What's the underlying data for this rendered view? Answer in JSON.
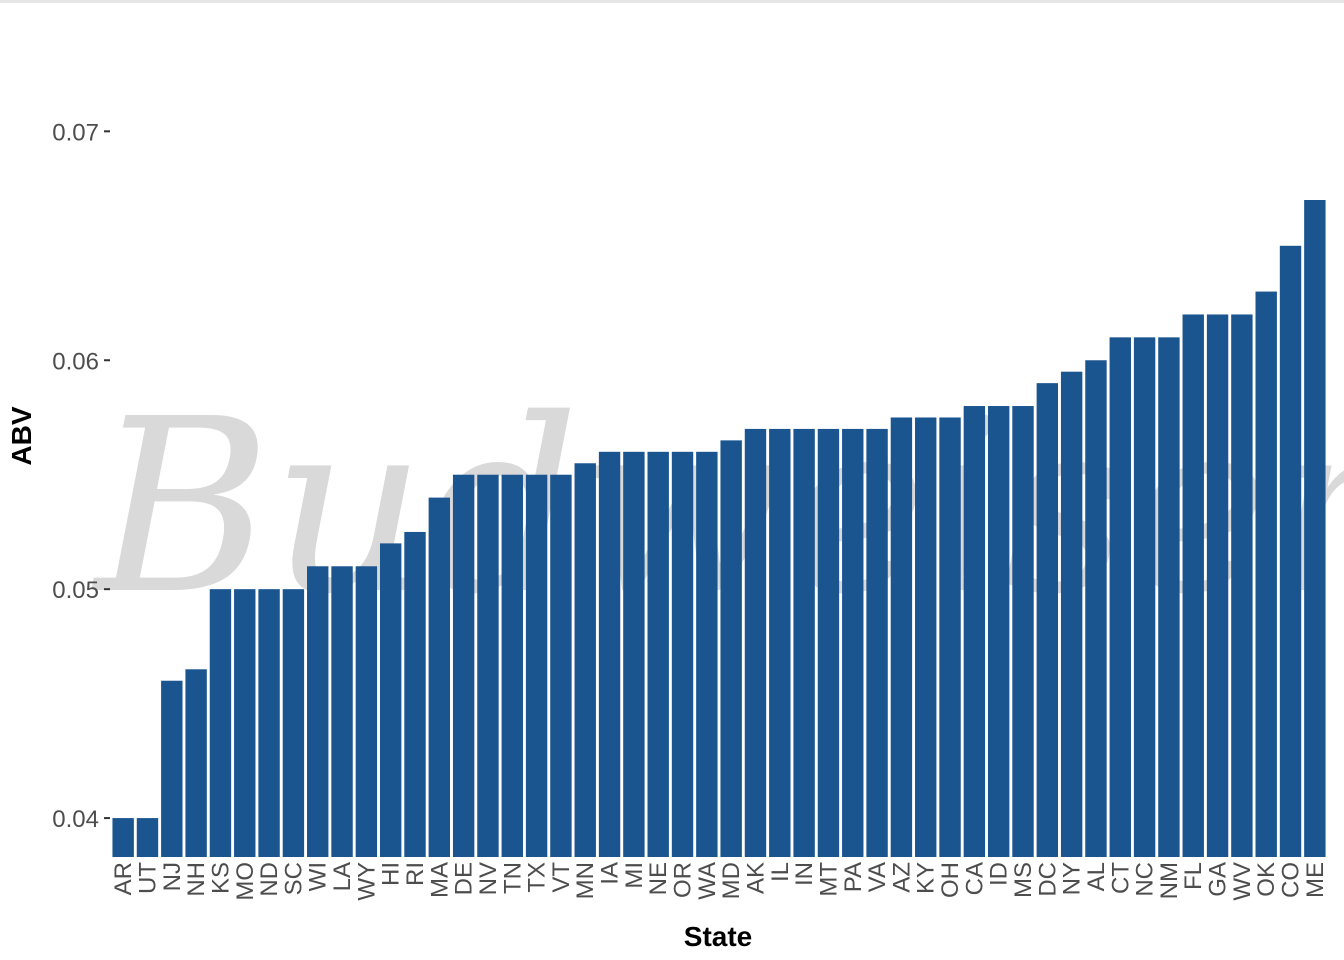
{
  "colors": {
    "bar": "#1b5590",
    "background": "#ffffff",
    "tick_text": "#4d4d4d",
    "title_text": "#000000",
    "watermark": "#d9d9d9"
  },
  "watermark_text": "Budweiser",
  "chart_data": {
    "type": "bar",
    "title": "",
    "xlabel": "State",
    "ylabel": "ABV",
    "ylim": [
      0.0383,
      0.0753
    ],
    "yticks": [
      0.04,
      0.05,
      0.06,
      0.07
    ],
    "ytick_labels": [
      "0.04",
      "0.05",
      "0.06",
      "0.07"
    ],
    "grid": false,
    "categories": [
      "AR",
      "UT",
      "NJ",
      "NH",
      "KS",
      "MO",
      "ND",
      "SC",
      "WI",
      "LA",
      "WY",
      "HI",
      "RI",
      "MA",
      "DE",
      "NV",
      "TN",
      "TX",
      "VT",
      "MN",
      "IA",
      "MI",
      "NE",
      "OR",
      "WA",
      "MD",
      "AK",
      "IL",
      "IN",
      "MT",
      "PA",
      "VA",
      "AZ",
      "KY",
      "OH",
      "CA",
      "ID",
      "MS",
      "DC",
      "NY",
      "AL",
      "CT",
      "NC",
      "NM",
      "FL",
      "GA",
      "WV",
      "OK",
      "CO",
      "ME"
    ],
    "values": [
      0.04,
      0.04,
      0.046,
      0.0465,
      0.05,
      0.05,
      0.05,
      0.05,
      0.051,
      0.051,
      0.051,
      0.052,
      0.0525,
      0.054,
      0.055,
      0.055,
      0.055,
      0.055,
      0.055,
      0.0555,
      0.056,
      0.056,
      0.056,
      0.056,
      0.056,
      0.0565,
      0.057,
      0.057,
      0.057,
      0.057,
      0.057,
      0.057,
      0.0575,
      0.0575,
      0.0575,
      0.058,
      0.058,
      0.058,
      0.059,
      0.0595,
      0.06,
      0.061,
      0.061,
      0.061,
      0.062,
      0.062,
      0.062,
      0.063,
      0.065,
      0.067
    ]
  }
}
